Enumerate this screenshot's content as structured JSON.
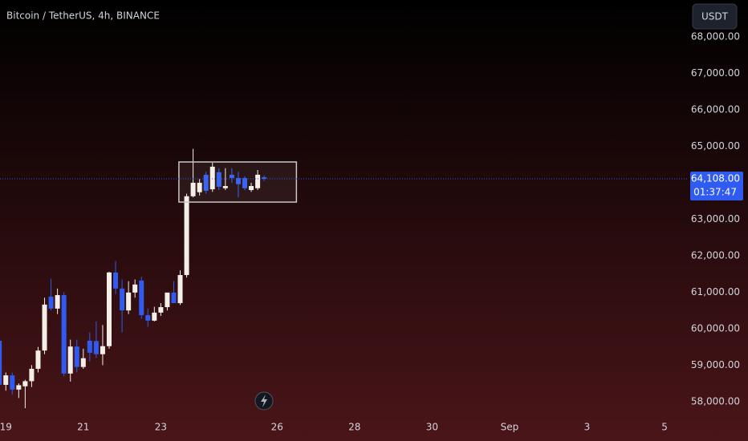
{
  "chart_data": {
    "type": "candlestick",
    "title": "Bitcoin / TetherUS, 4h, BINANCE",
    "currency": "USDT",
    "x": [
      -1,
      0,
      1,
      2,
      3,
      4,
      5,
      6,
      7,
      8,
      9,
      10,
      11,
      12,
      13,
      14,
      15,
      16,
      17,
      18,
      19,
      20,
      21,
      22,
      23,
      24,
      25,
      26,
      27,
      28,
      29,
      30,
      31,
      32,
      33,
      34,
      35,
      36,
      37,
      38,
      39,
      40
    ],
    "open": [
      59670,
      58460,
      58720,
      58330,
      58420,
      58560,
      58900,
      59400,
      60880,
      60550,
      60920,
      58770,
      59510,
      58950,
      59670,
      59660,
      59300,
      59520,
      61540,
      61100,
      60500,
      60990,
      61320,
      60370,
      60220,
      60440,
      60590,
      60990,
      60700,
      61470,
      63630,
      63740,
      64220,
      63820,
      64290,
      63850,
      64220,
      64130,
      64130,
      63800,
      63850,
      64150
    ],
    "high": [
      59720,
      58800,
      58800,
      58500,
      58600,
      59000,
      59500,
      60850,
      61370,
      61100,
      61000,
      59700,
      59700,
      59450,
      59900,
      60200,
      60100,
      61560,
      61850,
      61350,
      61300,
      61350,
      61420,
      60550,
      60600,
      60700,
      60950,
      61300,
      61600,
      63700,
      64930,
      64100,
      64300,
      64550,
      64400,
      64400,
      64400,
      64300,
      64180,
      64000,
      64350,
      64200
    ],
    "low": [
      58400,
      58300,
      58200,
      58100,
      57820,
      58400,
      58800,
      59300,
      60500,
      60400,
      58700,
      58550,
      58800,
      58900,
      59100,
      59200,
      59000,
      59450,
      60950,
      59900,
      60400,
      60850,
      60270,
      60050,
      60200,
      60350,
      60500,
      60700,
      60650,
      61400,
      63600,
      63650,
      63700,
      63750,
      63800,
      63800,
      64000,
      63600,
      63800,
      63750,
      63800,
      64050
    ],
    "close": [
      58460,
      58720,
      58330,
      58450,
      58560,
      58900,
      59400,
      60660,
      60550,
      60920,
      58770,
      59510,
      58950,
      59190,
      59340,
      59300,
      59520,
      61540,
      61100,
      60500,
      60990,
      61210,
      60370,
      60220,
      60440,
      60590,
      60990,
      60700,
      61470,
      63630,
      64000,
      64000,
      63780,
      64440,
      63890,
      63910,
      64130,
      63960,
      63850,
      63910,
      64220,
      64108
    ],
    "up_color": "#f4efe6",
    "down_color": "#2f5bf0",
    "xlim": [
      -0.9,
      105.6
    ],
    "xticks": [
      {
        "value": 0,
        "label": "19"
      },
      {
        "value": 12,
        "label": "21"
      },
      {
        "value": 24,
        "label": "23"
      },
      {
        "value": 42,
        "label": "26"
      },
      {
        "value": 54,
        "label": "28"
      },
      {
        "value": 66,
        "label": "30"
      },
      {
        "value": 78,
        "label": "Sep"
      },
      {
        "value": 90,
        "label": "3"
      },
      {
        "value": 102,
        "label": "5"
      }
    ],
    "ylim": [
      57580,
      69010
    ],
    "yticks": [
      {
        "value": 58000,
        "label": "58,000.00"
      },
      {
        "value": 59000,
        "label": "59,000.00"
      },
      {
        "value": 60000,
        "label": "60,000.00"
      },
      {
        "value": 61000,
        "label": "61,000.00"
      },
      {
        "value": 62000,
        "label": "62,000.00"
      },
      {
        "value": 63000,
        "label": "63,000.00"
      },
      {
        "value": 64000,
        "label": "64,000.00"
      },
      {
        "value": 65000,
        "label": "65,000.00"
      },
      {
        "value": 66000,
        "label": "66,000.00"
      },
      {
        "value": 67000,
        "label": "67,000.00"
      },
      {
        "value": 68000,
        "label": "68,000.00"
      }
    ],
    "last_price": {
      "value": 64108,
      "label": "64,108.00"
    },
    "countdown": "01:37:47",
    "box": {
      "x": [
        26.8,
        45.0
      ],
      "y": [
        63470,
        64570
      ]
    }
  }
}
